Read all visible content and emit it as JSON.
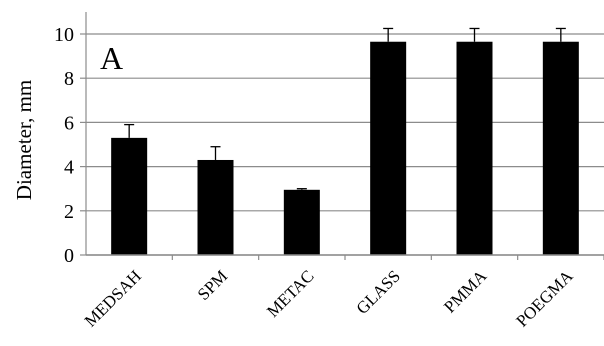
{
  "chart_data": {
    "type": "bar",
    "panel_label": "A",
    "ylabel": "Diameter, mm",
    "xlabel": "",
    "ylim": [
      0,
      10
    ],
    "yticks": [
      0,
      2,
      4,
      6,
      8,
      10
    ],
    "grid": true,
    "categories": [
      "MEDSAH",
      "SPM",
      "METAC",
      "GLASS",
      "PMMA",
      "POEGMA"
    ],
    "values": [
      5.3,
      4.3,
      2.95,
      9.65,
      9.65,
      9.65
    ],
    "errors": [
      0.6,
      0.6,
      0.05,
      0.6,
      0.6,
      0.6
    ],
    "bar_color": "#000000",
    "grid_color": "#8c8c8c"
  }
}
